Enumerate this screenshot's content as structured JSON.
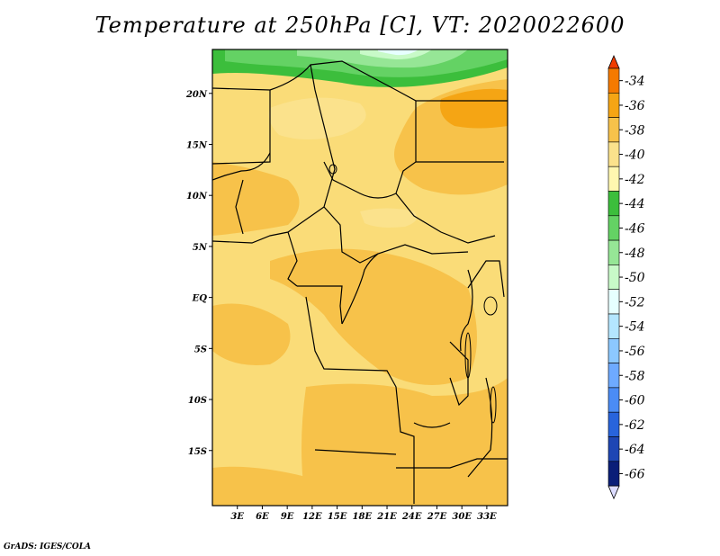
{
  "title": "Temperature at 250hPa [C], VT: 2020022600",
  "credit": "GrADS: IGES/COLA",
  "map": {
    "lon_range": [
      0,
      35.5
    ],
    "lat_range": [
      -20.4,
      24.3
    ],
    "lon_ticks": [
      "3E",
      "6E",
      "9E",
      "12E",
      "15E",
      "18E",
      "21E",
      "24E",
      "27E",
      "30E",
      "33E"
    ],
    "lat_ticks": [
      "20N",
      "15N",
      "10N",
      "5N",
      "EQ",
      "5S",
      "10S",
      "15S"
    ],
    "dominant_fill": "#fadc78"
  },
  "colorbar": {
    "labels": [
      "-34",
      "-36",
      "-38",
      "-40",
      "-42",
      "-44",
      "-46",
      "-48",
      "-50",
      "-52",
      "-54",
      "-56",
      "-58",
      "-60",
      "-62",
      "-64",
      "-66"
    ],
    "colors": [
      "#f03c00",
      "#f57a00",
      "#f5a514",
      "#f7c24a",
      "#fbe28c",
      "#fff7b0",
      "#3cbe3c",
      "#64d264",
      "#96e696",
      "#c8fac8",
      "#e6ffff",
      "#b4e6ff",
      "#8cc8ff",
      "#6eaaff",
      "#4b8cf5",
      "#2864dc",
      "#1e46b4",
      "#0a1e78",
      "#dcdcff"
    ]
  }
}
